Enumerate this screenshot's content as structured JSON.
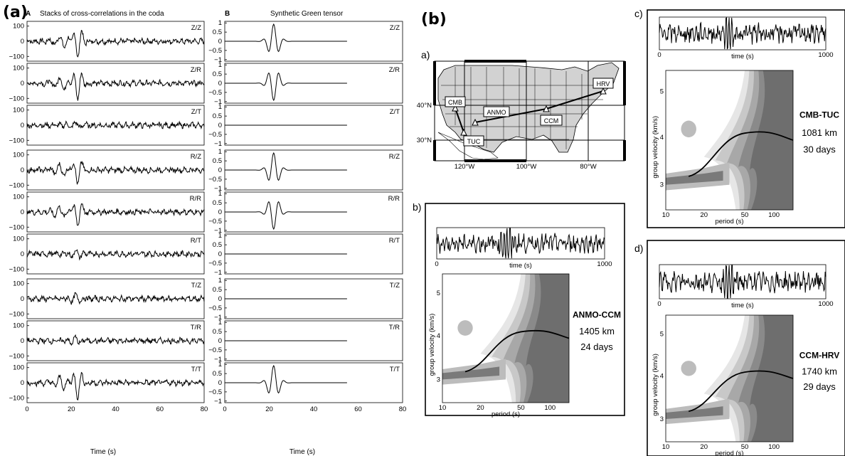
{
  "panel_a": {
    "label": "(a)",
    "col_a_letter": "A",
    "col_a_title": "Stacks of cross-correlations in the coda",
    "col_b_letter": "B",
    "col_b_title": "Synthetic Green tensor",
    "components": [
      "Z/Z",
      "Z/R",
      "Z/T",
      "R/Z",
      "R/R",
      "R/T",
      "T/Z",
      "T/R",
      "T/T"
    ],
    "left_yticks": [
      "100",
      "0",
      "−100"
    ],
    "right_yticks": [
      "1",
      "0.5",
      "0",
      "−0.5",
      "−1"
    ],
    "left_xticks": [
      "0",
      "20",
      "40",
      "60",
      "80"
    ],
    "right_xticks": [
      "0",
      "20",
      "40",
      "60",
      "80"
    ],
    "xlabel": "Time (s)"
  },
  "panel_b": {
    "label": "(b)",
    "map": {
      "label": "a)",
      "lat_labels": [
        "40°N",
        "30°N"
      ],
      "lon_labels": [
        "120°W",
        "100°W",
        "80°W"
      ],
      "stations": [
        "CMB",
        "ANMO",
        "HRV",
        "CCM",
        "TUC"
      ]
    },
    "sub_b": {
      "label": "b)",
      "trace_xticks": [
        "0",
        "1000"
      ],
      "trace_xlabel": "time (s)",
      "yticks": [
        "5",
        "4",
        "3"
      ],
      "ylabel": "group velocity (km/s)",
      "xticks": [
        "10",
        "20",
        "50",
        "100"
      ],
      "xlabel": "period (s)",
      "pair": "ANMO-CCM",
      "distance": "1405 km",
      "days": "24 days"
    },
    "sub_c": {
      "label": "c)",
      "trace_xticks": [
        "0",
        "1000"
      ],
      "trace_xlabel": "time (s)",
      "yticks": [
        "5",
        "4",
        "3"
      ],
      "ylabel": "group velocity (km/s)",
      "xticks": [
        "10",
        "20",
        "50",
        "100"
      ],
      "xlabel": "period (s)",
      "pair": "CMB-TUC",
      "distance": "1081 km",
      "days": "30 days"
    },
    "sub_d": {
      "label": "d)",
      "trace_xticks": [
        "0",
        "1000"
      ],
      "trace_xlabel": "time (s)",
      "yticks": [
        "5",
        "4",
        "3"
      ],
      "ylabel": "group velocity (km/s)",
      "xticks": [
        "10",
        "20",
        "50",
        "100"
      ],
      "xlabel": "period (s)",
      "pair": "CCM-HRV",
      "distance": "1740 km",
      "days": "29 days"
    }
  }
}
